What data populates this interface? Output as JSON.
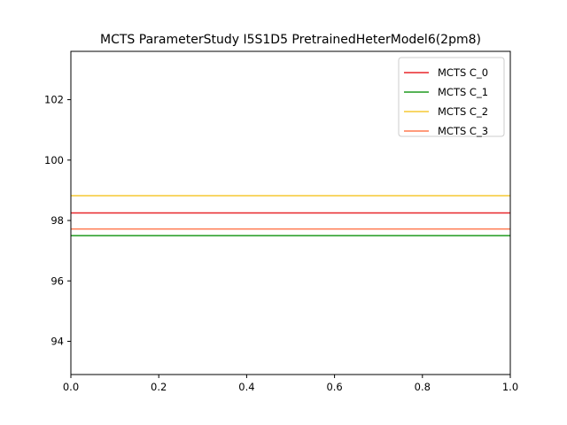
{
  "chart_data": {
    "type": "line",
    "title": "MCTS ParameterStudy I5S1D5 PretrainedHeterModel6(2pm8)",
    "xlabel": "",
    "ylabel": "",
    "xlim": [
      0.0,
      1.0
    ],
    "ylim": [
      92.9,
      103.6
    ],
    "x_ticks": [
      "0.0",
      "0.2",
      "0.4",
      "0.6",
      "0.8",
      "1.0"
    ],
    "y_ticks": [
      "94",
      "96",
      "98",
      "100",
      "102"
    ],
    "legend_position": "top-right",
    "grid": false,
    "series": [
      {
        "name": "MCTS C_0",
        "color": "#e8262a",
        "x": [
          0.0,
          1.0
        ],
        "values": [
          98.25,
          98.25
        ]
      },
      {
        "name": "MCTS C_1",
        "color": "#1f9a1f",
        "x": [
          0.0,
          1.0
        ],
        "values": [
          97.5,
          97.5
        ]
      },
      {
        "name": "MCTS C_2",
        "color": "#f5c933",
        "x": [
          0.0,
          1.0
        ],
        "values": [
          98.82,
          98.82
        ]
      },
      {
        "name": "MCTS C_3",
        "color": "#ff7a50",
        "x": [
          0.0,
          1.0
        ],
        "values": [
          97.72,
          97.72
        ]
      }
    ]
  }
}
